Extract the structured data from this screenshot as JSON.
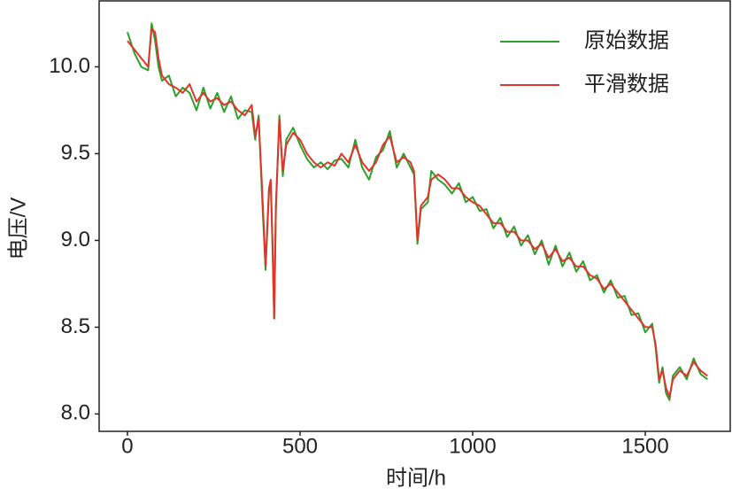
{
  "chart_data": {
    "type": "line",
    "xlabel": "时间/h",
    "ylabel": "电压/V",
    "x": [
      0,
      20,
      40,
      60,
      70,
      80,
      90,
      100,
      120,
      140,
      160,
      180,
      200,
      220,
      240,
      260,
      280,
      300,
      320,
      340,
      360,
      370,
      380,
      390,
      400,
      410,
      415,
      420,
      425,
      430,
      440,
      450,
      460,
      480,
      500,
      520,
      540,
      560,
      580,
      600,
      620,
      640,
      660,
      680,
      700,
      720,
      740,
      760,
      780,
      800,
      820,
      830,
      840,
      850,
      870,
      880,
      900,
      920,
      940,
      960,
      980,
      1000,
      1020,
      1040,
      1060,
      1080,
      1100,
      1120,
      1140,
      1160,
      1180,
      1200,
      1220,
      1240,
      1260,
      1280,
      1300,
      1320,
      1340,
      1360,
      1380,
      1400,
      1420,
      1440,
      1460,
      1480,
      1500,
      1520,
      1530,
      1540,
      1550,
      1560,
      1570,
      1580,
      1600,
      1620,
      1640,
      1660,
      1680
    ],
    "series": [
      {
        "name": "原始数据",
        "color": "#2ca02c",
        "values": [
          10.2,
          10.08,
          10.0,
          9.98,
          10.25,
          10.15,
          10.0,
          9.92,
          9.95,
          9.83,
          9.88,
          9.85,
          9.75,
          9.88,
          9.76,
          9.85,
          9.74,
          9.83,
          9.7,
          9.75,
          9.74,
          9.58,
          9.72,
          9.25,
          8.83,
          9.28,
          9.33,
          8.98,
          8.55,
          9.18,
          9.72,
          9.37,
          9.58,
          9.65,
          9.55,
          9.47,
          9.42,
          9.45,
          9.41,
          9.46,
          9.47,
          9.42,
          9.58,
          9.42,
          9.35,
          9.48,
          9.52,
          9.63,
          9.42,
          9.5,
          9.42,
          9.38,
          8.98,
          9.18,
          9.22,
          9.4,
          9.35,
          9.32,
          9.27,
          9.33,
          9.22,
          9.25,
          9.17,
          9.18,
          9.07,
          9.13,
          9.02,
          9.08,
          8.97,
          9.03,
          8.92,
          9.0,
          8.86,
          8.97,
          8.85,
          8.93,
          8.82,
          8.88,
          8.77,
          8.8,
          8.7,
          8.77,
          8.67,
          8.68,
          8.57,
          8.58,
          8.47,
          8.52,
          8.38,
          8.18,
          8.27,
          8.12,
          8.08,
          8.22,
          8.27,
          8.2,
          8.32,
          8.23,
          8.2
        ]
      },
      {
        "name": "平滑数据",
        "color": "#e0352b",
        "values": [
          10.15,
          10.1,
          10.05,
          10.0,
          10.22,
          10.2,
          10.05,
          9.95,
          9.9,
          9.88,
          9.85,
          9.9,
          9.8,
          9.85,
          9.8,
          9.82,
          9.78,
          9.8,
          9.75,
          9.72,
          9.78,
          9.6,
          9.7,
          9.3,
          8.85,
          9.3,
          9.35,
          9.0,
          8.55,
          9.2,
          9.7,
          9.4,
          9.55,
          9.62,
          9.58,
          9.5,
          9.45,
          9.42,
          9.45,
          9.43,
          9.5,
          9.45,
          9.55,
          9.45,
          9.4,
          9.45,
          9.55,
          9.6,
          9.45,
          9.48,
          9.45,
          9.4,
          9.0,
          9.2,
          9.25,
          9.35,
          9.38,
          9.35,
          9.3,
          9.3,
          9.25,
          9.22,
          9.2,
          9.15,
          9.1,
          9.1,
          9.05,
          9.05,
          9.0,
          9.0,
          8.95,
          8.98,
          8.9,
          8.95,
          8.88,
          8.9,
          8.85,
          8.85,
          8.8,
          8.78,
          8.72,
          8.75,
          8.7,
          8.65,
          8.6,
          8.55,
          8.5,
          8.5,
          8.4,
          8.2,
          8.25,
          8.15,
          8.1,
          8.2,
          8.25,
          8.22,
          8.3,
          8.25,
          8.22
        ]
      }
    ],
    "xlim": [
      -82,
      1746
    ],
    "ylim": [
      7.9,
      10.38
    ],
    "xticks": [
      0,
      500,
      1000,
      1500
    ],
    "yticks": [
      {
        "value": 8,
        "label": "8.0"
      },
      8.5,
      {
        "value": 9,
        "label": "9.0"
      },
      9.5,
      {
        "value": 10,
        "label": "10.0"
      }
    ],
    "grid": false,
    "legend": "upper right"
  }
}
